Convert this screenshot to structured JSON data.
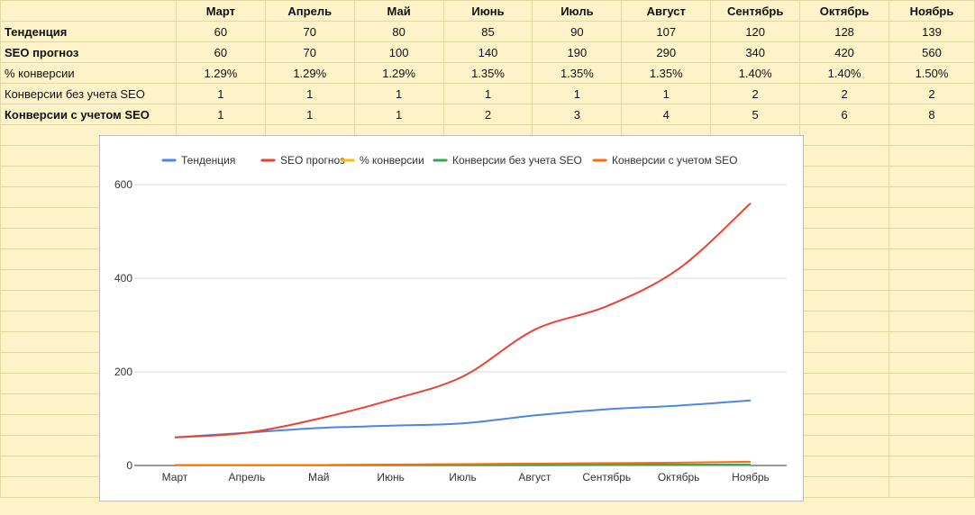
{
  "table": {
    "months": [
      "Март",
      "Апрель",
      "Май",
      "Июнь",
      "Июль",
      "Август",
      "Сентябрь",
      "Октябрь",
      "Ноябрь"
    ],
    "rows": [
      {
        "label": "Тенденция",
        "bold": true,
        "values": [
          "60",
          "70",
          "80",
          "85",
          "90",
          "107",
          "120",
          "128",
          "139"
        ]
      },
      {
        "label": "SEO прогноз",
        "bold": true,
        "values": [
          "60",
          "70",
          "100",
          "140",
          "190",
          "290",
          "340",
          "420",
          "560"
        ]
      },
      {
        "label": "% конверсии",
        "bold": false,
        "values": [
          "1.29%",
          "1.29%",
          "1.29%",
          "1.35%",
          "1.35%",
          "1.35%",
          "1.40%",
          "1.40%",
          "1.50%"
        ]
      },
      {
        "label": "Конверсии без учета SEO",
        "bold": false,
        "values": [
          "1",
          "1",
          "1",
          "1",
          "1",
          "1",
          "2",
          "2",
          "2"
        ]
      },
      {
        "label": "Конверсии с учетом SEO",
        "bold": true,
        "values": [
          "1",
          "1",
          "1",
          "2",
          "3",
          "4",
          "5",
          "6",
          "8"
        ]
      }
    ]
  },
  "chart_data": {
    "type": "line",
    "categories": [
      "Март",
      "Апрель",
      "Май",
      "Июнь",
      "Июль",
      "Август",
      "Сентябрь",
      "Октябрь",
      "Ноябрь"
    ],
    "ylim": [
      0,
      600
    ],
    "yticks": [
      0,
      200,
      400,
      600
    ],
    "grid": true,
    "legend_position": "top",
    "series": [
      {
        "name": "Тенденция",
        "color": "#4a86e8",
        "values": [
          60,
          70,
          80,
          85,
          90,
          107,
          120,
          128,
          139
        ]
      },
      {
        "name": "SEO прогноз",
        "color": "#ea4335",
        "values": [
          60,
          70,
          100,
          140,
          190,
          290,
          340,
          420,
          560
        ]
      },
      {
        "name": "% конверсии",
        "color": "#fbbc04",
        "values": [
          0.0129,
          0.0129,
          0.0129,
          0.0135,
          0.0135,
          0.0135,
          0.014,
          0.014,
          0.015
        ]
      },
      {
        "name": "Конверсии без учета SEO",
        "color": "#34a853",
        "values": [
          1,
          1,
          1,
          1,
          1,
          1,
          2,
          2,
          2
        ]
      },
      {
        "name": "Конверсии с учетом SEO",
        "color": "#ff6d01",
        "values": [
          1,
          1,
          1,
          2,
          3,
          4,
          5,
          6,
          8
        ]
      }
    ]
  }
}
